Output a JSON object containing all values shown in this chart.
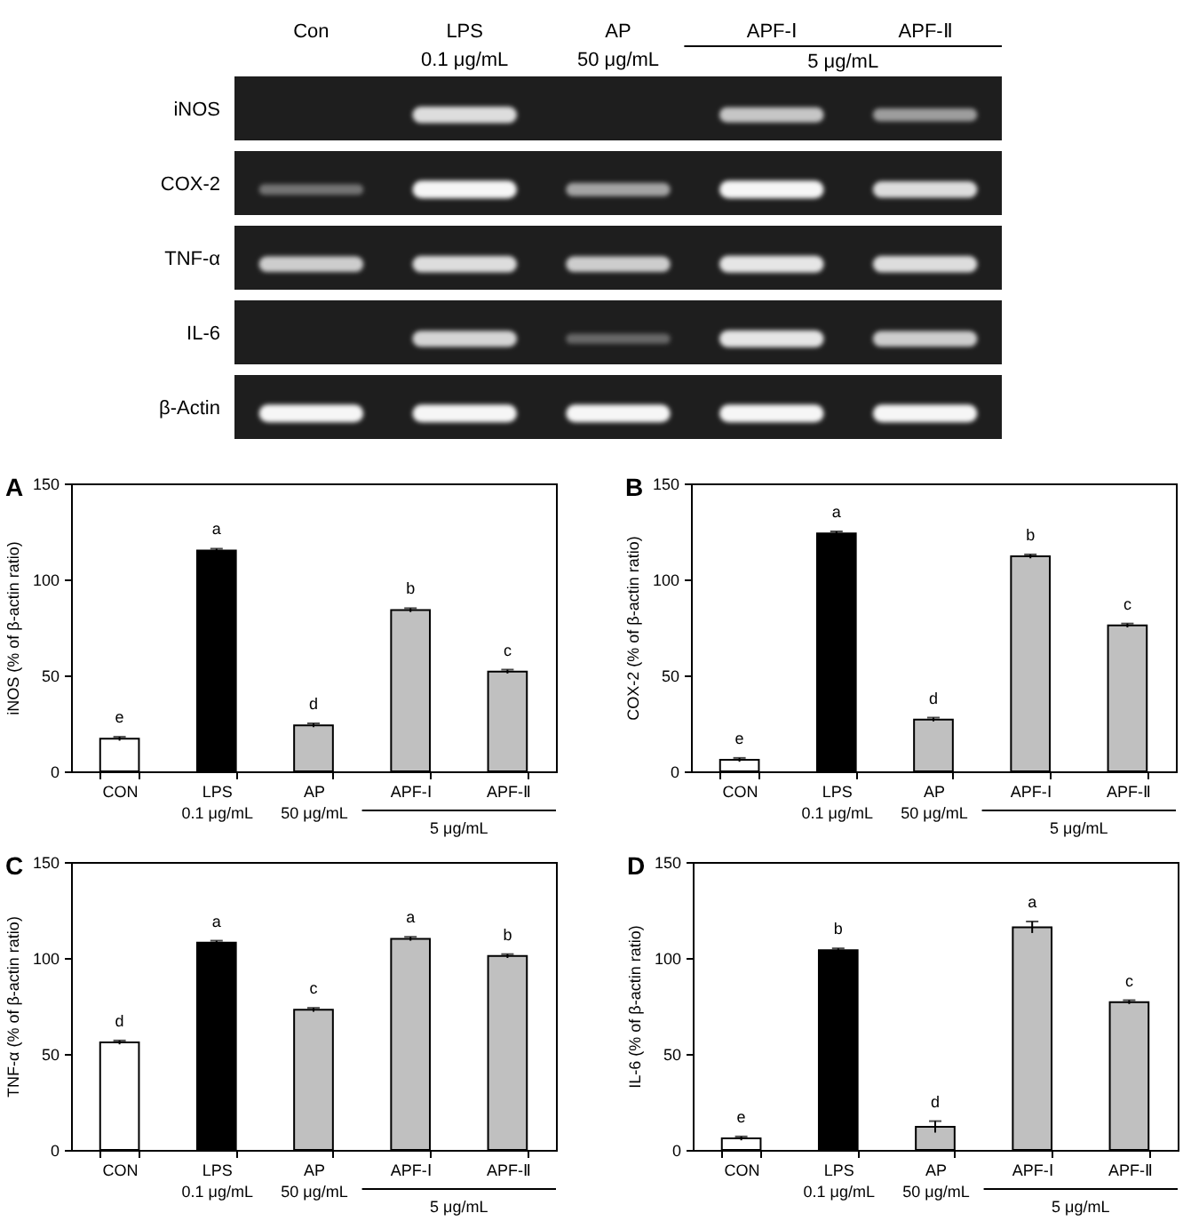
{
  "chart_data": [
    {
      "type": "other",
      "categories": [
        "Con",
        "LPS\n0.1 μg/mL",
        "AP\n50 μg/mL",
        "APF-Ⅰ",
        "APF-Ⅱ"
      ],
      "y_categories": [
        "iNOS",
        "COX-2",
        "TNF-α",
        "IL-6",
        "β-Actin"
      ],
      "annotations": [
        "5 μg/mL"
      ]
    },
    {
      "type": "bar",
      "title": "A",
      "ylabel": "iNOS (% of β-actin ratio)",
      "categories": [
        "CON",
        "LPS\n0.1 μg/mL",
        "AP\n50 μg/mL",
        "APF-Ⅰ",
        "APF-Ⅱ"
      ],
      "values": [
        17,
        115,
        24,
        84,
        52
      ],
      "errors": [
        1,
        1,
        1,
        1,
        1
      ],
      "colors": [
        "#ffffff",
        "#000000",
        "#c0c0c0",
        "#c0c0c0",
        "#c0c0c0"
      ],
      "value_labels": [
        "e",
        "a",
        "d",
        "b",
        "c"
      ],
      "ylim": [
        0,
        150
      ],
      "yticks": [
        0,
        50,
        100,
        150
      ],
      "annotations": [
        "5 μg/mL"
      ]
    },
    {
      "type": "bar",
      "title": "B",
      "ylabel": "COX-2 (% of β-actin ratio)",
      "categories": [
        "CON",
        "LPS\n0.1 μg/mL",
        "AP\n50 μg/mL",
        "APF-Ⅰ",
        "APF-Ⅱ"
      ],
      "values": [
        6,
        124,
        27,
        112,
        76
      ],
      "errors": [
        1,
        1,
        1,
        1,
        1
      ],
      "colors": [
        "#ffffff",
        "#000000",
        "#c0c0c0",
        "#c0c0c0",
        "#c0c0c0"
      ],
      "value_labels": [
        "e",
        "a",
        "d",
        "b",
        "c"
      ],
      "ylim": [
        0,
        150
      ],
      "yticks": [
        0,
        50,
        100,
        150
      ],
      "annotations": [
        "5 μg/mL"
      ]
    },
    {
      "type": "bar",
      "title": "C",
      "ylabel": "TNF-α (% of β-actin ratio)",
      "categories": [
        "CON",
        "LPS\n0.1 μg/mL",
        "AP\n50 μg/mL",
        "APF-Ⅰ",
        "APF-Ⅱ"
      ],
      "values": [
        56,
        108,
        73,
        110,
        101
      ],
      "errors": [
        1,
        1,
        1,
        1,
        1
      ],
      "colors": [
        "#ffffff",
        "#000000",
        "#c0c0c0",
        "#c0c0c0",
        "#c0c0c0"
      ],
      "value_labels": [
        "d",
        "a",
        "c",
        "a",
        "b"
      ],
      "ylim": [
        0,
        150
      ],
      "yticks": [
        0,
        50,
        100,
        150
      ],
      "annotations": [
        "5 μg/mL"
      ]
    },
    {
      "type": "bar",
      "title": "D",
      "ylabel": "IL-6 (% of β-actin ratio)",
      "categories": [
        "CON",
        "LPS\n0.1 μg/mL",
        "AP\n50 μg/mL",
        "APF-Ⅰ",
        "APF-Ⅱ"
      ],
      "values": [
        6,
        104,
        12,
        116,
        77
      ],
      "errors": [
        1,
        1,
        3,
        3,
        1
      ],
      "colors": [
        "#ffffff",
        "#000000",
        "#c0c0c0",
        "#c0c0c0",
        "#c0c0c0"
      ],
      "value_labels": [
        "e",
        "b",
        "d",
        "a",
        "c"
      ],
      "ylim": [
        0,
        150
      ],
      "yticks": [
        0,
        50,
        100,
        150
      ],
      "annotations": [
        "5 μg/mL"
      ]
    }
  ]
}
